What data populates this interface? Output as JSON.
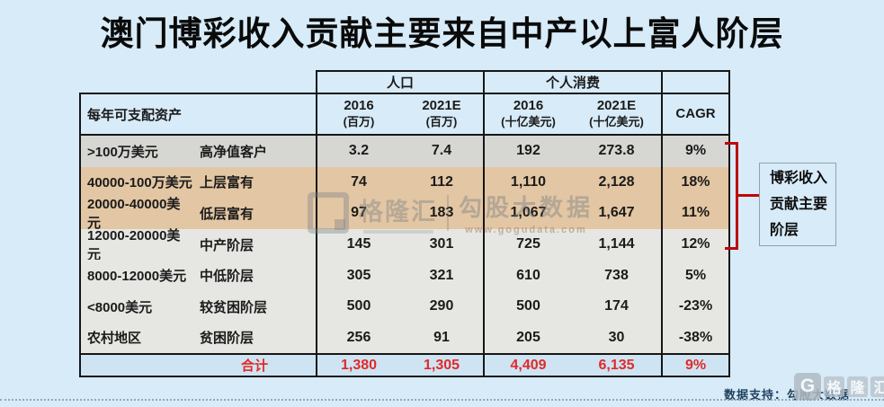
{
  "page": {
    "title": "澳门博彩收入贡献主要来自中产以上富人阶层",
    "background_color": "#d7ebf8"
  },
  "chart_data": {
    "type": "table",
    "title": "澳门博彩收入贡献主要来自中产以上富人阶层",
    "group_headers": {
      "population": "人口",
      "consumption": "个人消费"
    },
    "columns": {
      "assets": "每年可支配资产",
      "pop_2016": "2016",
      "pop_2016_unit": "(百万)",
      "pop_2021": "2021E",
      "pop_2021_unit": "(百万)",
      "cons_2016": "2016",
      "cons_2016_unit": "(十亿美元)",
      "cons_2021": "2021E",
      "cons_2021_unit": "(十亿美元)",
      "cagr": "CAGR"
    },
    "rows": [
      {
        "range": ">100万美元",
        "tier": "高净值客户",
        "values": [
          "3.2",
          "7.4",
          "192",
          "273.8",
          "9%"
        ]
      },
      {
        "range": "40000-100万美元",
        "tier": "上层富有",
        "values": [
          "74",
          "112",
          "1,110",
          "2,128",
          "18%"
        ]
      },
      {
        "range": "20000-40000美元",
        "tier": "低层富有",
        "values": [
          "97",
          "183",
          "1,067",
          "1,647",
          "11%"
        ]
      },
      {
        "range": "12000-20000美元",
        "tier": "中产阶层",
        "values": [
          "145",
          "301",
          "725",
          "1,144",
          "12%"
        ]
      },
      {
        "range": "8000-12000美元",
        "tier": "中低阶层",
        "values": [
          "305",
          "321",
          "610",
          "738",
          "5%"
        ]
      },
      {
        "range": "<8000美元",
        "tier": "较贫困阶层",
        "values": [
          "500",
          "290",
          "500",
          "174",
          "-23%"
        ]
      },
      {
        "range": "农村地区",
        "tier": "贫困阶层",
        "values": [
          "256",
          "91",
          "205",
          "30",
          "-38%"
        ]
      }
    ],
    "total": {
      "label": "合计",
      "values": [
        "1,380",
        "1,305",
        "4,409",
        "6,135",
        "9%"
      ]
    },
    "highlight": {
      "bracket_rows": "rows 1-4",
      "bracket_color": "#c00505",
      "note": "博彩收入贡献主要阶层"
    },
    "row_colors": {
      "row1": "#d6d7d3",
      "rows2_3": "#e3c6a3",
      "rows4_7": "#e6e7e3",
      "total": "#cfe4f2",
      "total_text": "#e02a2a"
    }
  },
  "annotation": {
    "text": "博彩收入贡献主要阶层"
  },
  "watermark": {
    "brand_g": "G",
    "brand": "格隆汇",
    "product": "勾股大数据",
    "url": "www.gogudata.com"
  },
  "footer": {
    "text": "数据支持：勾股大数据",
    "logo_g": "G",
    "logo_chars": [
      "格",
      "隆",
      "汇"
    ]
  }
}
